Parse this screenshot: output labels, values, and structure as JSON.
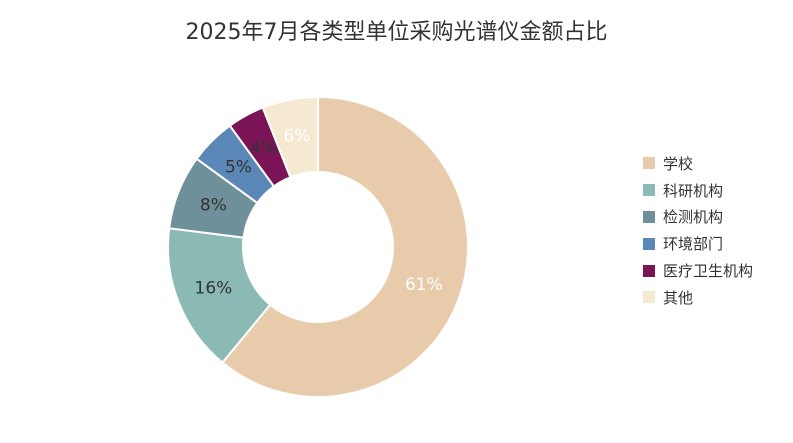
{
  "chart_data": {
    "type": "pie",
    "title": "2025年7月各类型单位采购光谱仪金额占比",
    "categories": [
      "学校",
      "科研机构",
      "检测机构",
      "环境部门",
      "医疗卫生机构",
      "其他"
    ],
    "values": [
      61,
      16,
      8,
      5,
      4,
      6
    ],
    "labels": [
      "61%",
      "16%",
      "8%",
      "5%",
      "4%",
      "6%"
    ],
    "colors": [
      "#E8CBAB",
      "#8BBAB5",
      "#6E909B",
      "#5B87B6",
      "#7B1456",
      "#F5E9D1"
    ],
    "legend_position": "right"
  }
}
